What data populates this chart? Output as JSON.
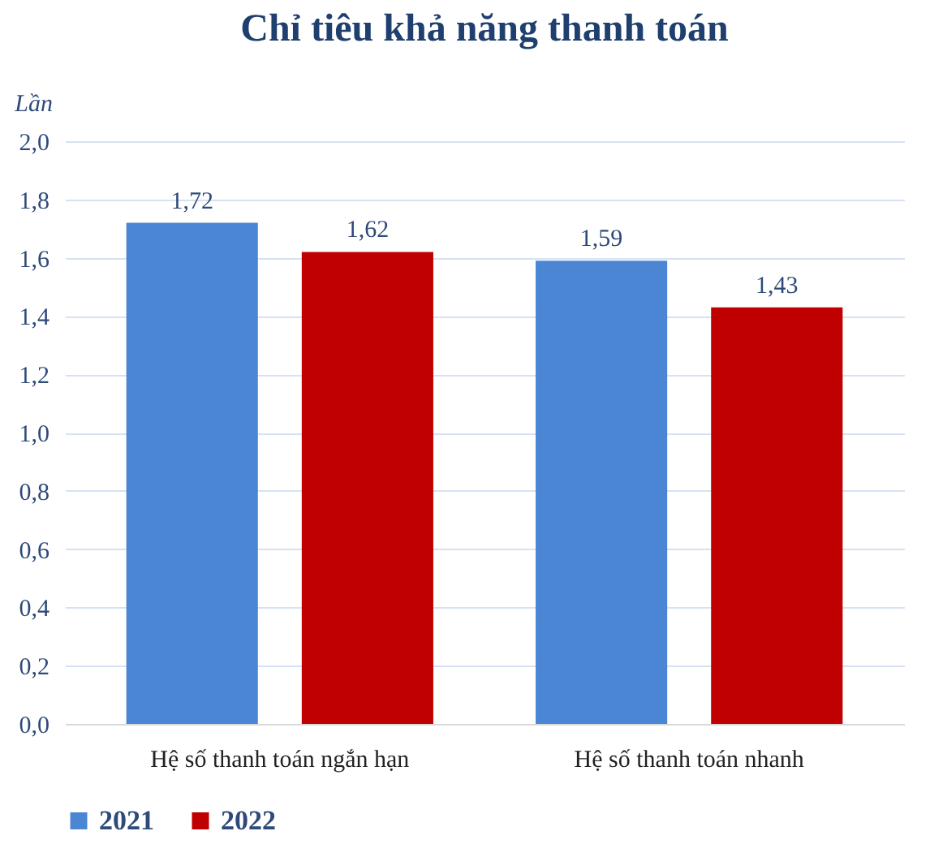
{
  "chart_data": {
    "type": "bar",
    "title": "Chỉ tiêu khả năng thanh toán",
    "ylabel": "Lần",
    "categories": [
      "Hệ số thanh toán ngắn hạn",
      "Hệ số thanh toán nhanh"
    ],
    "series": [
      {
        "name": "2021",
        "color": "#4a86d4",
        "values": [
          1.72,
          1.59
        ],
        "value_labels": [
          "1,72",
          "1,59"
        ]
      },
      {
        "name": "2022",
        "color": "#c00000",
        "values": [
          1.62,
          1.43
        ],
        "value_labels": [
          "1,62",
          "1,43"
        ]
      }
    ],
    "ylim": [
      0,
      2
    ],
    "yticks": [
      {
        "value": 0,
        "label": "0,0"
      },
      {
        "value": 0.2,
        "label": "0,2"
      },
      {
        "value": 0.4,
        "label": "0,4"
      },
      {
        "value": 0.6,
        "label": "0,6"
      },
      {
        "value": 0.8,
        "label": "0,8"
      },
      {
        "value": 1,
        "label": "1,0"
      },
      {
        "value": 1.2,
        "label": "1,2"
      },
      {
        "value": 1.4,
        "label": "1,4"
      },
      {
        "value": 1.6,
        "label": "1,6"
      },
      {
        "value": 1.8,
        "label": "1,8"
      },
      {
        "value": 2,
        "label": "2,0"
      }
    ],
    "grid": "y",
    "legend": "bottom"
  }
}
